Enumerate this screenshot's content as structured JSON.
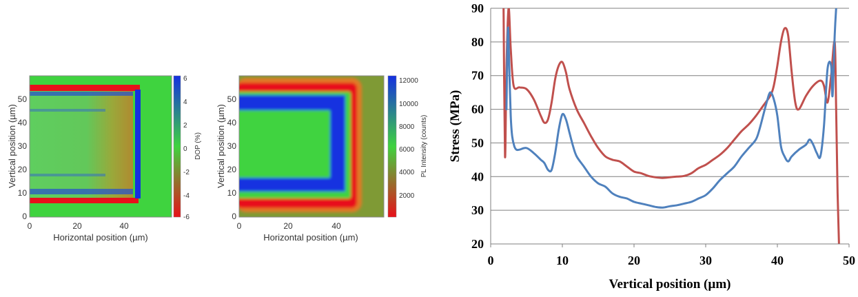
{
  "charts": {
    "dop_map": {
      "ylabel": "Vertical position (µm)",
      "xlabel": "Horizontal position (µm)",
      "xticks": [
        "0",
        "20",
        "40"
      ],
      "yticks": [
        "0",
        "10",
        "20",
        "30",
        "40",
        "50"
      ],
      "colorbar_label": "DOP (%)",
      "colorbar_ticks": [
        "6",
        "4",
        "2",
        "0",
        "-2",
        "-4",
        "-6"
      ]
    },
    "pl_map": {
      "ylabel": "Vertical position (µm)",
      "xlabel": "Horizontal position (µm)",
      "xticks": [
        "0",
        "20",
        "40"
      ],
      "yticks": [
        "0",
        "10",
        "20",
        "30",
        "40",
        "50"
      ],
      "colorbar_label": "PL Intensity (counts)",
      "colorbar_ticks": [
        "12000",
        "10000",
        "8000",
        "6000",
        "4000",
        "2000"
      ]
    },
    "stress": {
      "ylabel": "Stress (MPa)",
      "xlabel": "Vertical position (µm)",
      "xticks": [
        "0",
        "10",
        "20",
        "30",
        "40",
        "50"
      ],
      "yticks": [
        "20",
        "30",
        "40",
        "50",
        "60",
        "70",
        "80",
        "90"
      ]
    }
  },
  "chart_data": [
    {
      "type": "heatmap",
      "xlabel": "Horizontal position (µm)",
      "ylabel": "Vertical position (µm)",
      "colorbar_label": "DOP (%)",
      "xlim": [
        0,
        60
      ],
      "ylim": [
        0,
        58
      ],
      "clim": [
        -6,
        6
      ],
      "colors": {
        "low": "#e8101a",
        "mid": "#3fd33f",
        "high": "#1430e0"
      }
    },
    {
      "type": "heatmap",
      "xlabel": "Horizontal position (µm)",
      "ylabel": "Vertical position (µm)",
      "colorbar_label": "PL Intensity (counts)",
      "xlim": [
        0,
        60
      ],
      "ylim": [
        0,
        58
      ],
      "clim": [
        800,
        12500
      ],
      "colors": {
        "low": "#e8101a",
        "mid": "#3fd33f",
        "high": "#1430e0"
      }
    },
    {
      "type": "line",
      "xlabel": "Vertical position (µm)",
      "ylabel": "Stress (MPa)",
      "xlim": [
        0,
        50
      ],
      "ylim": [
        20,
        90
      ],
      "grid": true,
      "series": [
        {
          "color": "#c0504d",
          "x": [
            1.8,
            2.0,
            2.2,
            2.5,
            2.8,
            3.2,
            4,
            5,
            6,
            7,
            7.5,
            8,
            8.5,
            9,
            9.5,
            10,
            10.5,
            11,
            12,
            13,
            14,
            15,
            16,
            17,
            18,
            19,
            20,
            21,
            22,
            23,
            24,
            25,
            26,
            27,
            28,
            29,
            30,
            31,
            32,
            33,
            34,
            35,
            36,
            37,
            38,
            39,
            39.5,
            40,
            40.5,
            41,
            41.5,
            42,
            42.5,
            43,
            44,
            45,
            46,
            46.5,
            47,
            47.5,
            48,
            48.2,
            48.4,
            48.6
          ],
          "y": [
            90,
            46,
            72,
            90,
            78,
            67,
            66.5,
            66,
            63,
            58,
            56,
            57,
            62,
            69,
            73,
            74,
            71,
            66,
            60,
            56,
            52,
            48.5,
            46,
            45,
            44.5,
            43,
            41.5,
            41,
            40.2,
            39.8,
            39.6,
            39.8,
            40,
            40.2,
            41,
            42.5,
            43.5,
            45,
            46.5,
            48.5,
            51,
            53.5,
            55.5,
            58,
            61,
            64,
            67,
            73,
            80,
            84,
            82,
            71,
            62,
            60,
            64,
            67,
            68.5,
            67,
            62,
            70,
            80,
            60,
            35,
            20
          ]
        },
        {
          "color": "#4f81bd",
          "x": [
            2.2,
            2.4,
            2.6,
            2.8,
            3.0,
            3.3,
            3.6,
            4,
            5,
            6,
            7,
            7.5,
            8,
            8.5,
            9,
            9.5,
            10,
            10.5,
            11,
            11.5,
            12,
            13,
            14,
            15,
            16,
            17,
            18,
            19,
            20,
            21,
            22,
            23,
            24,
            25,
            26,
            27,
            28,
            29,
            30,
            31,
            32,
            33,
            34,
            35,
            36,
            37,
            37.5,
            38,
            38.5,
            39,
            39.5,
            40,
            40.5,
            41,
            41.5,
            42,
            43,
            44,
            44.5,
            45,
            45.5,
            46,
            46.5,
            47,
            47.5,
            47.7,
            48,
            48.2
          ],
          "y": [
            60,
            84,
            72,
            58,
            52,
            49,
            48,
            48,
            48.5,
            47,
            45,
            44,
            42,
            42,
            47,
            54,
            58.5,
            57,
            53,
            49,
            46,
            43,
            40,
            38,
            37,
            35,
            34,
            33.5,
            32.5,
            32,
            31.5,
            31,
            30.8,
            31.2,
            31.5,
            32,
            32.5,
            33.5,
            34.5,
            36.5,
            39,
            41,
            43,
            46,
            48.5,
            51,
            54,
            58,
            62,
            65,
            63,
            58,
            49,
            46,
            44.5,
            46,
            48,
            49.5,
            51,
            49.5,
            47,
            46,
            55,
            72,
            73,
            64,
            82,
            90
          ]
        }
      ]
    }
  ]
}
